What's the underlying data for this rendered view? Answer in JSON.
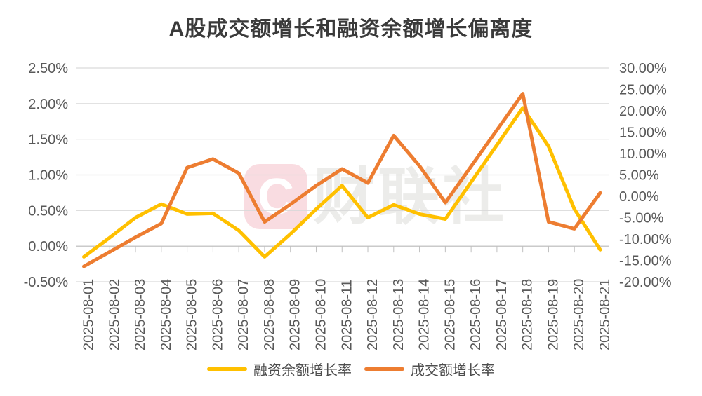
{
  "title": "A股成交额增长和融资余额增长偏离度",
  "watermark": {
    "logo_letter": "C",
    "brand_text": "财联社",
    "logo_bg_color": "#f9dce1",
    "text_color": "#ececea"
  },
  "legend": [
    {
      "label": "融资余额增长率",
      "color": "#FFC000"
    },
    {
      "label": "成交额增长率",
      "color": "#ED7D31"
    }
  ],
  "chart_data": {
    "type": "line",
    "title": "A股成交额增长和融资余额增长偏离度",
    "x": [
      "2025-08-01",
      "2025-08-02",
      "2025-08-03",
      "2025-08-04",
      "2025-08-05",
      "2025-08-06",
      "2025-08-07",
      "2025-08-08",
      "2025-08-09",
      "2025-08-10",
      "2025-08-11",
      "2025-08-12",
      "2025-08-13",
      "2025-08-14",
      "2025-08-15",
      "2025-08-16",
      "2025-08-17",
      "2025-08-18",
      "2025-08-19",
      "2025-08-20",
      "2025-08-21"
    ],
    "series": [
      {
        "name": "融资余额增长率",
        "axis": "left",
        "color": "#FFC000",
        "values": [
          -0.15,
          0.12,
          0.4,
          0.59,
          0.45,
          0.46,
          0.22,
          -0.15,
          0.17,
          0.52,
          0.85,
          0.4,
          0.58,
          0.45,
          0.38,
          0.9,
          1.42,
          1.94,
          1.4,
          0.52,
          -0.05
        ]
      },
      {
        "name": "成交额增长率",
        "axis": "right",
        "color": "#ED7D31",
        "values": [
          -16.4,
          -13.0,
          -9.6,
          -6.4,
          6.7,
          8.7,
          5.4,
          -6.0,
          -1.9,
          2.5,
          6.4,
          3.1,
          14.2,
          7.1,
          -1.5,
          7.0,
          15.5,
          24.0,
          -6.0,
          -7.6,
          0.8
        ]
      }
    ],
    "left_axis": {
      "min": -0.5,
      "max": 2.5,
      "step": 0.5,
      "labels": [
        "2.50%",
        "2.00%",
        "1.50%",
        "1.00%",
        "0.50%",
        "0.00%",
        "-0.50%"
      ]
    },
    "right_axis": {
      "min": -20,
      "max": 30,
      "step": 5,
      "labels": [
        "30.00%",
        "25.00%",
        "20.00%",
        "15.00%",
        "10.00%",
        "5.00%",
        "0.00%",
        "-5.00%",
        "-10.00%",
        "-15.00%",
        "-20.00%"
      ]
    },
    "grid": true,
    "grid_color": "#d9d9d9",
    "axis_line_color": "#bfbfbf",
    "tick_label_color": "#595959",
    "legend_position": "bottom"
  }
}
